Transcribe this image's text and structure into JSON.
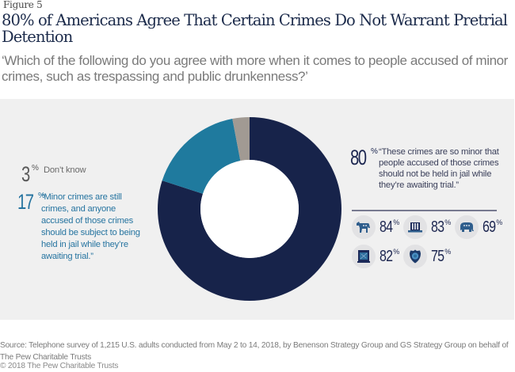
{
  "figure_label": "Figure 5",
  "title": "80% of Americans Agree That Certain Crimes Do Not Warrant Pretrial Detention",
  "subtitle": "‘Which of the following do you agree with more when it comes to people accused of minor crimes, such as trespassing and public drunkenness?’",
  "chart_data": {
    "type": "pie",
    "variant": "donut",
    "title": "80% of Americans Agree That Certain Crimes Do Not Warrant Pretrial Detention",
    "start": "top, clockwise",
    "slices": [
      {
        "key": "not_held",
        "value": 80,
        "color": "#17234a",
        "number": "80",
        "unit": "%",
        "label": "“These crimes are so minor that people accused of those crimes should not be held in jail while they’re awaiting trial.”"
      },
      {
        "key": "held",
        "value": 17,
        "color": "#1f7a9e",
        "number": "17",
        "unit": "%",
        "label": "“Minor crimes are still crimes, and anyone accused of those crimes should be subject to being held in jail while they’re awaiting trial.”"
      },
      {
        "key": "dont_know",
        "value": 3,
        "color": "#a19a93",
        "number": "3",
        "unit": "%",
        "label": "Don’t know"
      }
    ],
    "groups_agreeing_not_held": [
      {
        "icon": "democrat-donkey-icon",
        "value": 84,
        "number": "84",
        "unit": "%"
      },
      {
        "icon": "independent-hat-icon",
        "value": 83,
        "number": "83",
        "unit": "%"
      },
      {
        "icon": "republican-elephant-icon",
        "value": 69,
        "number": "69",
        "unit": "%"
      },
      {
        "icon": "jail-cell-icon",
        "value": 82,
        "number": "82",
        "unit": "%"
      },
      {
        "icon": "police-badge-icon",
        "value": 75,
        "number": "75",
        "unit": "%"
      }
    ]
  },
  "source": "Source: Telephone survey of 1,215 U.S. adults conducted from May 2 to 14, 2018, by Benenson Strategy Group and GS Strategy Group on behalf of The Pew Charitable Trusts",
  "copyright": "© 2018 The Pew Charitable Trusts",
  "colors": {
    "navy": "#17234a",
    "teal": "#1f7a9e",
    "gray": "#a19a93",
    "panel": "#f0f0f0"
  }
}
